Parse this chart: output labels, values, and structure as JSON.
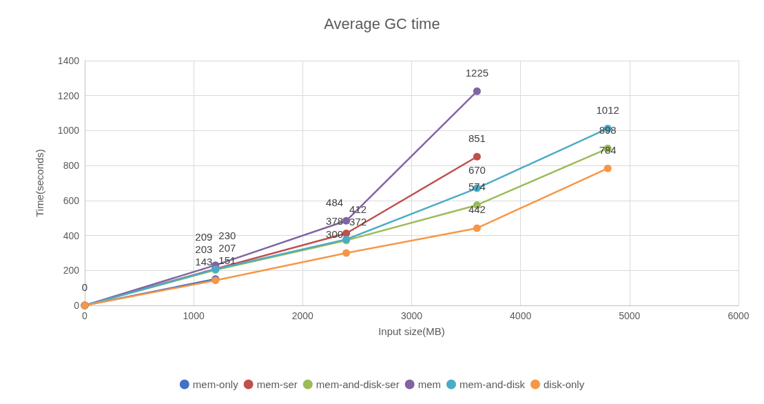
{
  "chart_data": {
    "type": "line",
    "title": "Average GC time",
    "xlabel": "Input size(MB)",
    "ylabel": "Time(seconds)",
    "xlim": [
      0,
      6000
    ],
    "xticks": [
      0,
      1000,
      2000,
      3000,
      4000,
      5000,
      6000
    ],
    "ylim": [
      0,
      1400
    ],
    "yticks": [
      0,
      200,
      400,
      600,
      800,
      1000,
      1200,
      1400
    ],
    "grid": true,
    "legend": "bottom",
    "marker": "circle",
    "line_style": "solid",
    "series": [
      {
        "name": "mem-only",
        "color": "#4472c4",
        "x": [
          0,
          1200
        ],
        "values": [
          0,
          151
        ],
        "value_labels": [
          "0",
          "151"
        ]
      },
      {
        "name": "mem-ser",
        "color": "#c0504d",
        "x": [
          0,
          1200,
          2400,
          3600
        ],
        "values": [
          0,
          209,
          412,
          851
        ],
        "value_labels": [
          null,
          "209",
          "412",
          "851"
        ]
      },
      {
        "name": "mem-and-disk-ser",
        "color": "#9bbb59",
        "x": [
          0,
          1200,
          2400,
          3600,
          4800
        ],
        "values": [
          0,
          203,
          372,
          574,
          898
        ],
        "value_labels": [
          null,
          "203",
          "372",
          "574",
          "898"
        ]
      },
      {
        "name": "mem",
        "color": "#8064a2",
        "x": [
          0,
          1200,
          2400,
          3600
        ],
        "values": [
          0,
          230,
          484,
          1225
        ],
        "value_labels": [
          null,
          "230",
          "484",
          "1225"
        ]
      },
      {
        "name": "mem-and-disk",
        "color": "#4bacc6",
        "x": [
          0,
          1200,
          2400,
          3600,
          4800
        ],
        "values": [
          0,
          207,
          378,
          670,
          1012
        ],
        "value_labels": [
          null,
          "207",
          "378",
          "670",
          "1012"
        ]
      },
      {
        "name": "disk-only",
        "color": "#f79646",
        "x": [
          0,
          1200,
          2400,
          3600,
          4800
        ],
        "values": [
          0,
          143,
          300,
          442,
          784
        ],
        "value_labels": [
          null,
          "143",
          "300",
          "442",
          "784"
        ]
      }
    ]
  }
}
